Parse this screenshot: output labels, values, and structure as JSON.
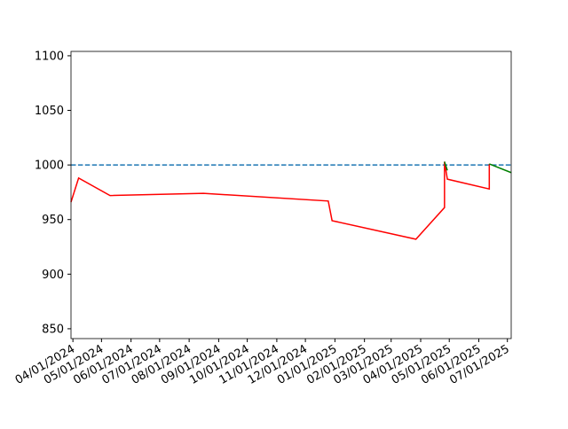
{
  "chart_data": {
    "type": "line",
    "xlim": [
      "2024-03-30",
      "2025-07-05"
    ],
    "ylim": [
      841,
      1104
    ],
    "yticks": [
      850,
      900,
      950,
      1000,
      1050,
      1100
    ],
    "xticks": [
      {
        "value": "2024-04-01",
        "label": "04/01/2024"
      },
      {
        "value": "2024-05-01",
        "label": "05/01/2024"
      },
      {
        "value": "2024-06-01",
        "label": "06/01/2024"
      },
      {
        "value": "2024-07-01",
        "label": "07/01/2024"
      },
      {
        "value": "2024-08-01",
        "label": "08/01/2024"
      },
      {
        "value": "2024-09-01",
        "label": "09/01/2024"
      },
      {
        "value": "2024-10-01",
        "label": "10/01/2024"
      },
      {
        "value": "2024-11-01",
        "label": "11/01/2024"
      },
      {
        "value": "2024-12-01",
        "label": "12/01/2024"
      },
      {
        "value": "2025-01-01",
        "label": "01/01/2025"
      },
      {
        "value": "2025-02-01",
        "label": "02/01/2025"
      },
      {
        "value": "2025-03-01",
        "label": "03/01/2025"
      },
      {
        "value": "2025-04-01",
        "label": "04/01/2025"
      },
      {
        "value": "2025-05-01",
        "label": "05/01/2025"
      },
      {
        "value": "2025-06-01",
        "label": "06/01/2025"
      },
      {
        "value": "2025-07-01",
        "label": "07/01/2025"
      }
    ],
    "hline": {
      "value": 1000,
      "color": "#1f77b4",
      "style": "dashed"
    },
    "series": [
      {
        "color": "#ff0000",
        "x": [
          "2024-03-30",
          "2024-04-07",
          "2024-05-10",
          "2024-08-16",
          "2024-12-25",
          "2024-12-29",
          "2025-03-27",
          "2025-04-26",
          "2025-04-26",
          "2025-04-29",
          "2025-06-12",
          "2025-06-12"
        ],
        "values": [
          966,
          988,
          972,
          974,
          967,
          949,
          932,
          961,
          1003,
          987,
          978,
          1001
        ]
      },
      {
        "color": "#008000",
        "x": [
          "2025-04-26",
          "2025-04-29",
          null,
          "2025-06-12",
          "2025-07-05"
        ],
        "values": [
          1003,
          995,
          null,
          1001,
          993
        ]
      }
    ]
  }
}
